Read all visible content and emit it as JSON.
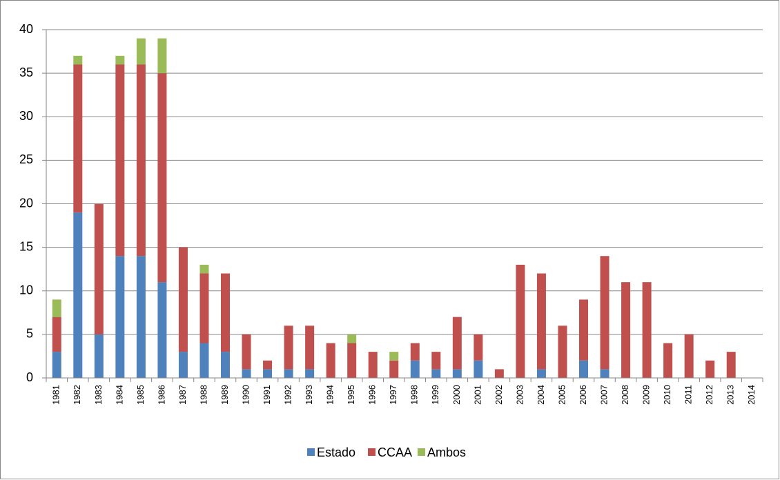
{
  "chart_data": {
    "type": "stacked_bar",
    "categories": [
      "1981",
      "1982",
      "1983",
      "1984",
      "1985",
      "1986",
      "1987",
      "1988",
      "1989",
      "1990",
      "1991",
      "1992",
      "1993",
      "1994",
      "1995",
      "1996",
      "1997",
      "1998",
      "1999",
      "2000",
      "2001",
      "2002",
      "2003",
      "2004",
      "2005",
      "2006",
      "2007",
      "2008",
      "2009",
      "2010",
      "2011",
      "2012",
      "2013",
      "2014"
    ],
    "series": [
      {
        "name": "Estado",
        "color": "#4f81bd",
        "values": [
          3,
          19,
          5,
          14,
          14,
          11,
          3,
          4,
          3,
          1,
          1,
          1,
          1,
          0,
          0,
          0,
          0,
          2,
          1,
          1,
          2,
          0,
          0,
          1,
          0,
          2,
          1,
          0,
          0,
          0,
          0,
          0,
          0,
          0
        ]
      },
      {
        "name": "CCAA",
        "color": "#c0504d",
        "values": [
          4,
          17,
          15,
          22,
          22,
          24,
          12,
          8,
          9,
          4,
          1,
          5,
          5,
          4,
          4,
          3,
          2,
          2,
          2,
          6,
          3,
          1,
          13,
          11,
          6,
          7,
          13,
          11,
          11,
          4,
          5,
          2,
          3,
          0
        ]
      },
      {
        "name": "Ambos",
        "color": "#9bbb59",
        "values": [
          2,
          1,
          0,
          1,
          3,
          4,
          0,
          1,
          0,
          0,
          0,
          0,
          0,
          0,
          1,
          0,
          1,
          0,
          0,
          0,
          0,
          0,
          0,
          0,
          0,
          0,
          0,
          0,
          0,
          0,
          0,
          0,
          0,
          0
        ]
      }
    ],
    "ylim": [
      0,
      40
    ],
    "yticks": [
      0,
      5,
      10,
      15,
      20,
      25,
      30,
      35,
      40
    ],
    "grid": true,
    "legend": "bottom"
  }
}
